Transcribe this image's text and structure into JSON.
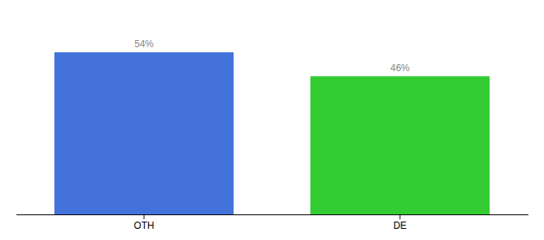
{
  "chart_data": {
    "type": "bar",
    "categories": [
      "OTH",
      "DE"
    ],
    "values": [
      54,
      46
    ],
    "value_labels": [
      "54%",
      "46%"
    ],
    "colors": [
      "#4472db",
      "#33cc33"
    ],
    "ylim": [
      0,
      65
    ],
    "data_labels": true,
    "tick_labels": "x",
    "grid": false
  }
}
